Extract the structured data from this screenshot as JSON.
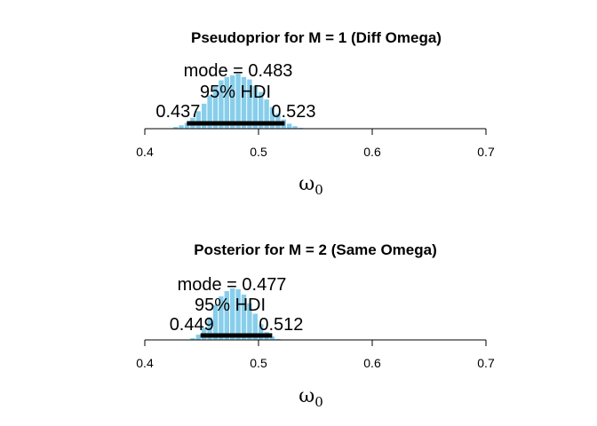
{
  "chart_data": [
    {
      "type": "bar",
      "title": "Pseudoprior for M = 1 (Diff Omega)",
      "xlabel_symbol": "ω",
      "xlabel_subscript": "0",
      "xlim": [
        0.4,
        0.7
      ],
      "xticks": [
        "0.4",
        "0.5",
        "0.6",
        "0.7"
      ],
      "xtick_values": [
        0.4,
        0.5,
        0.6,
        0.7
      ],
      "bar_color": "#87CEEB",
      "bin_centers": [
        0.4275,
        0.4325,
        0.4375,
        0.4425,
        0.4475,
        0.4525,
        0.4575,
        0.4625,
        0.4675,
        0.4725,
        0.4775,
        0.4825,
        0.4875,
        0.4925,
        0.4975,
        0.5025,
        0.5075,
        0.5125,
        0.5175,
        0.5225,
        0.5275,
        0.5325,
        0.5375
      ],
      "density": [
        2,
        4,
        7,
        13,
        21,
        30,
        40,
        50,
        58,
        62,
        64,
        66,
        62,
        59,
        51,
        44,
        35,
        26,
        18,
        11,
        6,
        3,
        1
      ],
      "mode_label": "mode = 0.483",
      "hdi_label": "95% HDI",
      "hdi": [
        0.437,
        0.523
      ],
      "hdi_low_label": "0.437",
      "hdi_high_label": "0.523"
    },
    {
      "type": "bar",
      "title": "Posterior for M = 2 (Same Omega)",
      "xlabel_symbol": "ω",
      "xlabel_subscript": "0",
      "xlim": [
        0.4,
        0.7
      ],
      "xticks": [
        "0.4",
        "0.5",
        "0.6",
        "0.7"
      ],
      "xtick_values": [
        0.4,
        0.5,
        0.6,
        0.7
      ],
      "bar_color": "#87CEEB",
      "bin_centers": [
        0.4425,
        0.4475,
        0.4525,
        0.4575,
        0.4625,
        0.4675,
        0.4725,
        0.4775,
        0.4825,
        0.4875,
        0.4925,
        0.4975,
        0.5025,
        0.5075,
        0.5125,
        0.5175
      ],
      "density": [
        2,
        6,
        14,
        26,
        40,
        50,
        56,
        59,
        58,
        52,
        42,
        30,
        18,
        9,
        4,
        1
      ],
      "mode_label": "mode = 0.477",
      "hdi_label": "95% HDI",
      "hdi": [
        0.449,
        0.512
      ],
      "hdi_low_label": "0.449",
      "hdi_high_label": "0.512"
    }
  ]
}
